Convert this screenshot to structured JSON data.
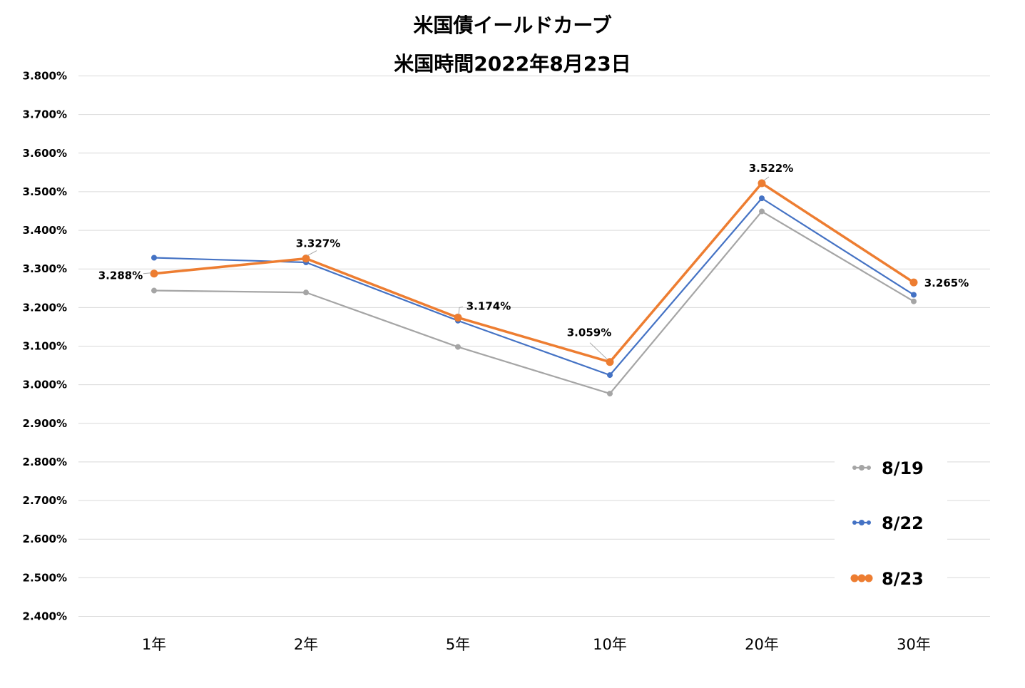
{
  "chart_data": {
    "type": "line",
    "title": "米国債イールドカーブ",
    "subtitle": "米国時間2022年8月23日",
    "categories": [
      "1年",
      "2年",
      "5年",
      "10年",
      "20年",
      "30年"
    ],
    "y_ticks": [
      "3.800%",
      "3.700%",
      "3.600%",
      "3.500%",
      "3.400%",
      "3.300%",
      "3.200%",
      "3.100%",
      "3.000%",
      "2.900%",
      "2.800%",
      "2.700%",
      "2.600%",
      "2.500%",
      "2.400%"
    ],
    "ylim": [
      2.4,
      3.8
    ],
    "grid": true,
    "legend_position": "bottom-right",
    "series": [
      {
        "name": "8/19",
        "color": "#A5A5A5",
        "values": [
          3.244,
          3.239,
          3.098,
          2.977,
          3.449,
          3.216
        ]
      },
      {
        "name": "8/22",
        "color": "#4472C4",
        "values": [
          3.329,
          3.317,
          3.166,
          3.025,
          3.483,
          3.233
        ]
      },
      {
        "name": "8/23",
        "color": "#ED7D31",
        "values": [
          3.288,
          3.327,
          3.174,
          3.059,
          3.522,
          3.265
        ],
        "data_labels": [
          "3.288%",
          "3.327%",
          "3.174%",
          "3.059%",
          "3.522%",
          "3.265%"
        ]
      }
    ]
  }
}
